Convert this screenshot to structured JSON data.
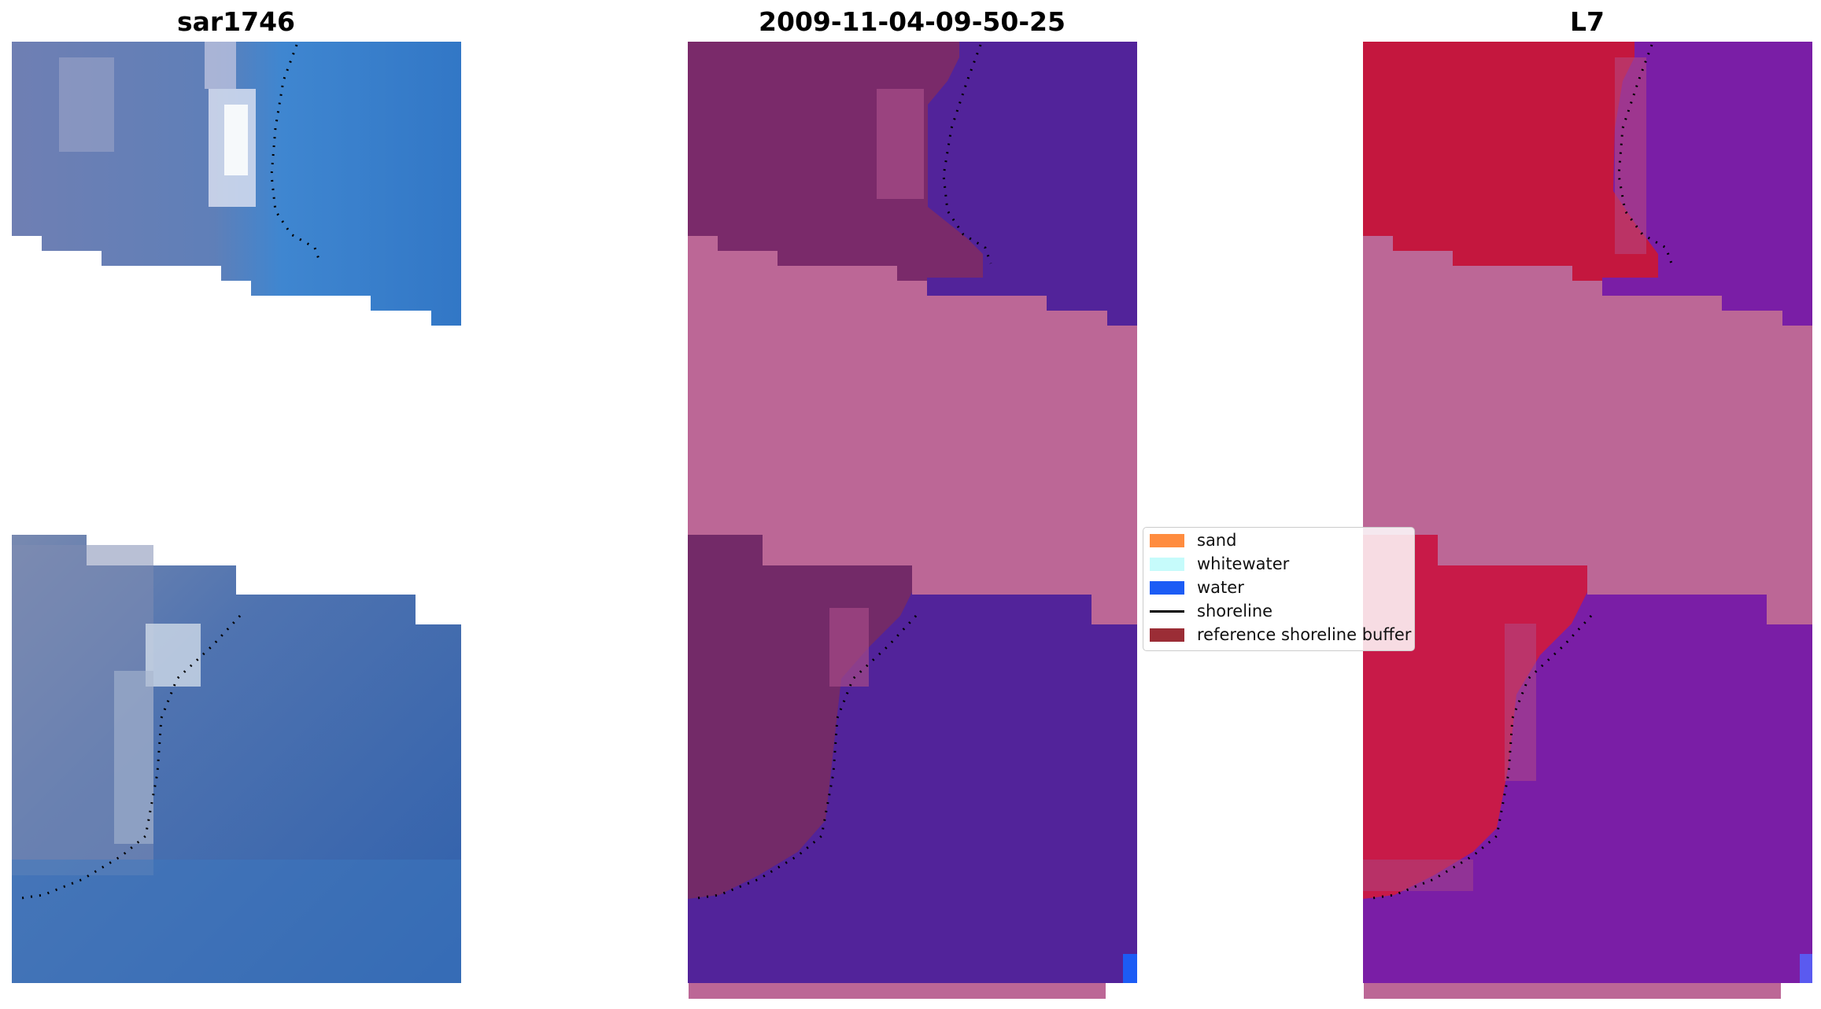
{
  "panels": {
    "left_title": "sar1746",
    "middle_title": "2009-11-04-09-50-25",
    "right_title": "L7"
  },
  "legend": {
    "items": [
      {
        "label": "sand",
        "color": "#ff8c3f",
        "kind": "patch"
      },
      {
        "label": "whitewater",
        "color": "#c6fbfb",
        "kind": "patch"
      },
      {
        "label": "water",
        "color": "#1c5cf5",
        "kind": "patch"
      },
      {
        "label": "shoreline",
        "color": "#000000",
        "kind": "line"
      },
      {
        "label": "reference shoreline buffer",
        "color": "#9b2d36",
        "kind": "patch"
      }
    ]
  },
  "colors": {
    "rgb_water": "#3c74c2",
    "rgb_land": "#7d8cb4",
    "class_water": "#52239a",
    "class_land": "#7a2a6a",
    "class_nodata": "#bc6796",
    "mndwi_land": "#c4173e",
    "mndwi_water": "#7a1ea6",
    "shoreline": "#000000"
  }
}
